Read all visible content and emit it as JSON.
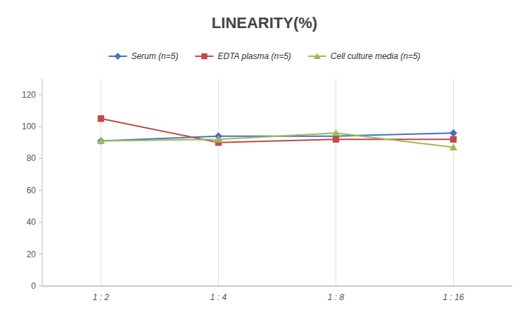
{
  "chart_data": {
    "type": "line",
    "title": "LINEARITY(%)",
    "categories": [
      "1 : 2",
      "1 : 4",
      "1 : 8",
      "1 : 16"
    ],
    "series": [
      {
        "name": "Serum (n=5)",
        "color": "#4472C4",
        "marker": "diamond",
        "values": [
          91,
          94,
          94,
          96
        ]
      },
      {
        "name": "EDTA plasma (n=5)",
        "color": "#BE4B48",
        "marker": "square",
        "values": [
          105,
          90,
          92,
          92
        ]
      },
      {
        "name": "Cell culture media (n=5)",
        "color": "#9BBB59",
        "marker": "triangle",
        "values": [
          91,
          92,
          96,
          87
        ]
      }
    ],
    "ylim": [
      0,
      130
    ],
    "yticks": [
      0,
      20,
      40,
      60,
      80,
      100,
      120
    ],
    "grid": true,
    "legend": "top"
  }
}
